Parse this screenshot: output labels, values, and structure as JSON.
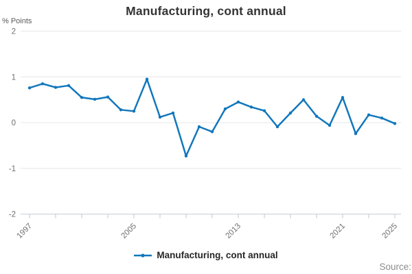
{
  "chart_data": {
    "type": "line",
    "title": "Manufacturing, cont annual",
    "ylabel": "% Points",
    "xlabel": "",
    "series_name": "Manufacturing, cont annual",
    "x": [
      1997,
      1998,
      1999,
      2000,
      2001,
      2002,
      2003,
      2004,
      2005,
      2006,
      2007,
      2008,
      2009,
      2010,
      2011,
      2012,
      2013,
      2014,
      2015,
      2016,
      2017,
      2018,
      2019,
      2020,
      2021,
      2022,
      2023,
      2024,
      2025
    ],
    "values": [
      0.76,
      0.85,
      0.77,
      0.81,
      0.55,
      0.51,
      0.56,
      0.28,
      0.25,
      0.95,
      0.12,
      0.21,
      -0.73,
      -0.09,
      -0.2,
      0.3,
      0.45,
      0.34,
      0.26,
      -0.09,
      0.21,
      0.5,
      0.14,
      -0.06,
      0.55,
      -0.24,
      0.17,
      0.1,
      -0.02
    ],
    "ylim": [
      -2,
      2
    ],
    "yticks": [
      2,
      1,
      0,
      -1,
      -2
    ],
    "ytick_labels": [
      "2",
      "1",
      "0",
      "-1",
      "-2"
    ],
    "xtick_step_years": 2,
    "xtick_labels": [
      "1997",
      "2005",
      "2013",
      "2021",
      "2025"
    ],
    "grid": true,
    "legend_position": "bottom",
    "marker": "dot",
    "colors": {
      "line": "#1177BC",
      "grid": "#E6E6E6",
      "axis": "#C5CFD8",
      "tick": "#B9C7D6",
      "tick_label": "#6E6E6E",
      "title": "#333333",
      "legend_text": "#262626",
      "source_text": "#8C8C8C"
    }
  },
  "legend": {
    "label": "Manufacturing, cont annual"
  },
  "footer": {
    "source_label": "Source:"
  }
}
